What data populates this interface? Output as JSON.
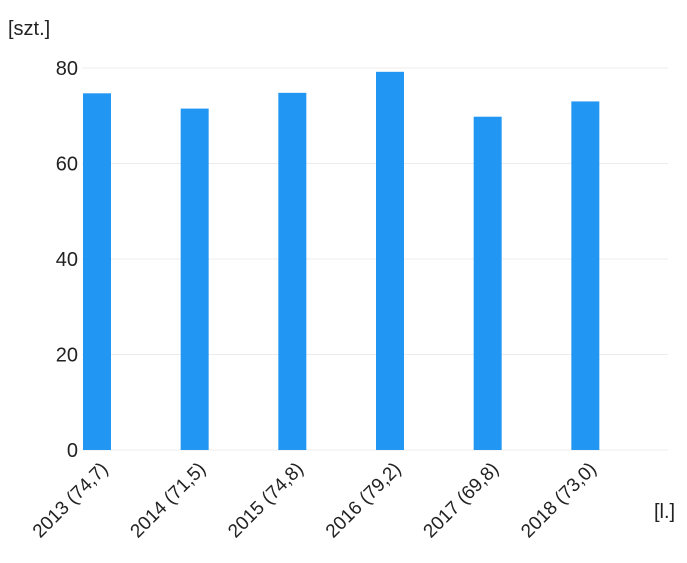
{
  "chart_data": {
    "type": "bar",
    "title": "",
    "ylabel": "[szt.]",
    "xlabel": "[l.]",
    "categories": [
      "2013 (74,7)",
      "2014 (71,5)",
      "2015 (74,8)",
      "2016 (79,2)",
      "2017 (69,8)",
      "2018 (73,0)"
    ],
    "values": [
      74.7,
      71.5,
      74.8,
      79.2,
      69.8,
      73.0
    ],
    "ylim": [
      0,
      80
    ],
    "yticks": [
      0,
      20,
      40,
      60,
      80
    ],
    "grid": true,
    "bar_color": "#2196f3"
  }
}
